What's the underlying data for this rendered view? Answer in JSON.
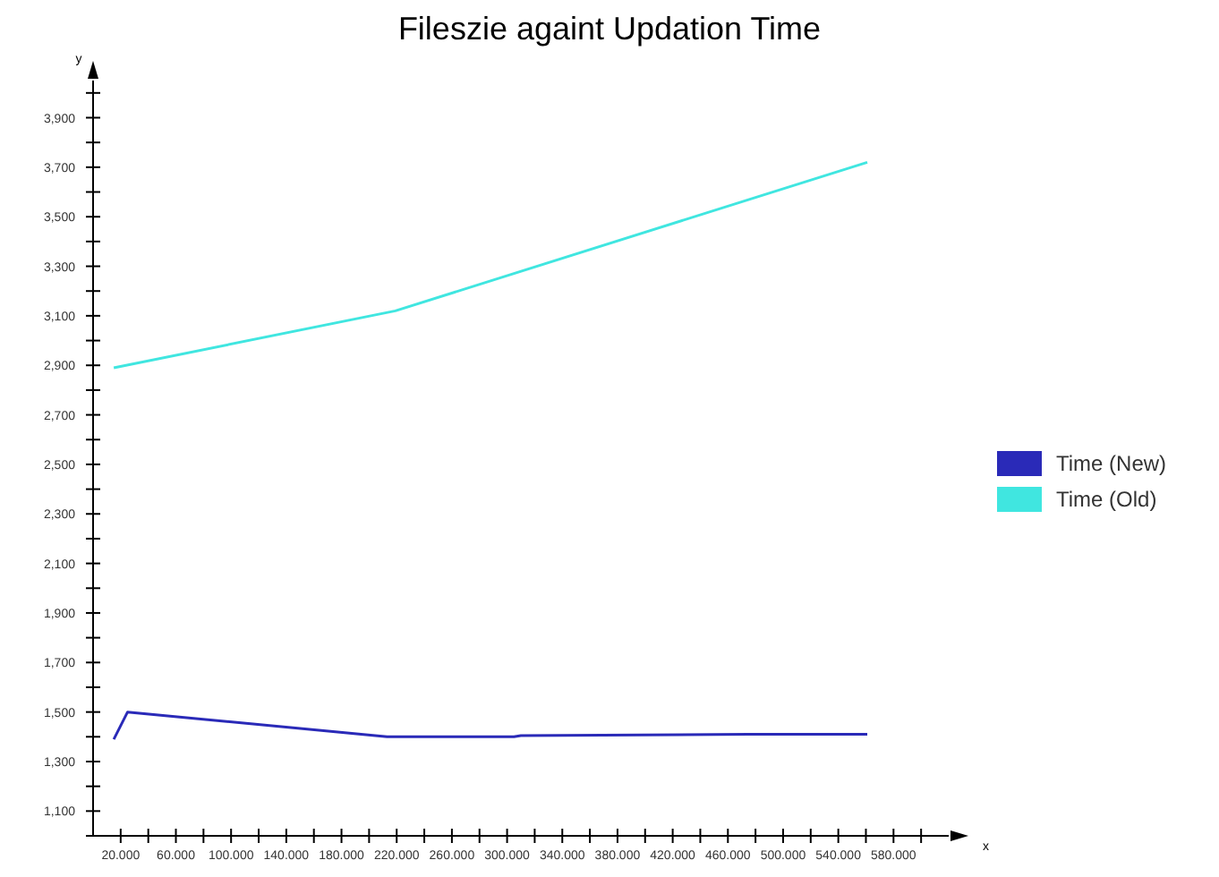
{
  "chart_data": {
    "type": "line",
    "title": "Fileszie againt Updation Time",
    "xlabel": "x",
    "ylabel": "y",
    "xlim": [
      0,
      620
    ],
    "ylim": [
      1000,
      4050
    ],
    "xticks": [
      {
        "value": 20,
        "label": "20.000"
      },
      {
        "value": 40,
        "label": null
      },
      {
        "value": 60,
        "label": "60.000"
      },
      {
        "value": 80,
        "label": null
      },
      {
        "value": 100,
        "label": "100.000"
      },
      {
        "value": 120,
        "label": null
      },
      {
        "value": 140,
        "label": "140.000"
      },
      {
        "value": 160,
        "label": null
      },
      {
        "value": 180,
        "label": "180.000"
      },
      {
        "value": 200,
        "label": null
      },
      {
        "value": 220,
        "label": "220.000"
      },
      {
        "value": 240,
        "label": null
      },
      {
        "value": 260,
        "label": "260.000"
      },
      {
        "value": 280,
        "label": null
      },
      {
        "value": 300,
        "label": "300.000"
      },
      {
        "value": 320,
        "label": null
      },
      {
        "value": 340,
        "label": "340.000"
      },
      {
        "value": 360,
        "label": null
      },
      {
        "value": 380,
        "label": "380.000"
      },
      {
        "value": 400,
        "label": null
      },
      {
        "value": 420,
        "label": "420.000"
      },
      {
        "value": 440,
        "label": null
      },
      {
        "value": 460,
        "label": "460.000"
      },
      {
        "value": 480,
        "label": null
      },
      {
        "value": 500,
        "label": "500.000"
      },
      {
        "value": 520,
        "label": null
      },
      {
        "value": 540,
        "label": "540.000"
      },
      {
        "value": 560,
        "label": null
      },
      {
        "value": 580,
        "label": "580.000"
      },
      {
        "value": 600,
        "label": null
      }
    ],
    "yticks": [
      {
        "value": 1000,
        "label": null
      },
      {
        "value": 1100,
        "label": "1,100"
      },
      {
        "value": 1200,
        "label": null
      },
      {
        "value": 1300,
        "label": "1,300"
      },
      {
        "value": 1400,
        "label": null
      },
      {
        "value": 1500,
        "label": "1,500"
      },
      {
        "value": 1600,
        "label": null
      },
      {
        "value": 1700,
        "label": "1,700"
      },
      {
        "value": 1800,
        "label": null
      },
      {
        "value": 1900,
        "label": "1,900"
      },
      {
        "value": 2000,
        "label": null
      },
      {
        "value": 2100,
        "label": "2,100"
      },
      {
        "value": 2200,
        "label": null
      },
      {
        "value": 2300,
        "label": "2,300"
      },
      {
        "value": 2400,
        "label": null
      },
      {
        "value": 2500,
        "label": "2,500"
      },
      {
        "value": 2600,
        "label": null
      },
      {
        "value": 2700,
        "label": "2,700"
      },
      {
        "value": 2800,
        "label": null
      },
      {
        "value": 2900,
        "label": "2,900"
      },
      {
        "value": 3000,
        "label": null
      },
      {
        "value": 3100,
        "label": "3,100"
      },
      {
        "value": 3200,
        "label": null
      },
      {
        "value": 3300,
        "label": "3,300"
      },
      {
        "value": 3400,
        "label": null
      },
      {
        "value": 3500,
        "label": "3,500"
      },
      {
        "value": 3600,
        "label": null
      },
      {
        "value": 3700,
        "label": "3,700"
      },
      {
        "value": 3800,
        "label": null
      },
      {
        "value": 3900,
        "label": "3,900"
      },
      {
        "value": 4000,
        "label": null
      }
    ],
    "grid": false,
    "legend": "right",
    "marker": "none",
    "line_style": "solid",
    "series": [
      {
        "name": "Time (New)",
        "color": "#2a2ab8",
        "x": [
          15,
          25,
          213,
          305,
          310,
          475,
          561
        ],
        "values": [
          1390,
          1500,
          1400,
          1400,
          1405,
          1410,
          1410
        ]
      },
      {
        "name": "Time (Old)",
        "color": "#40e6e0",
        "x": [
          15,
          219,
          561
        ],
        "values": [
          2890,
          3120,
          3720
        ]
      }
    ]
  }
}
